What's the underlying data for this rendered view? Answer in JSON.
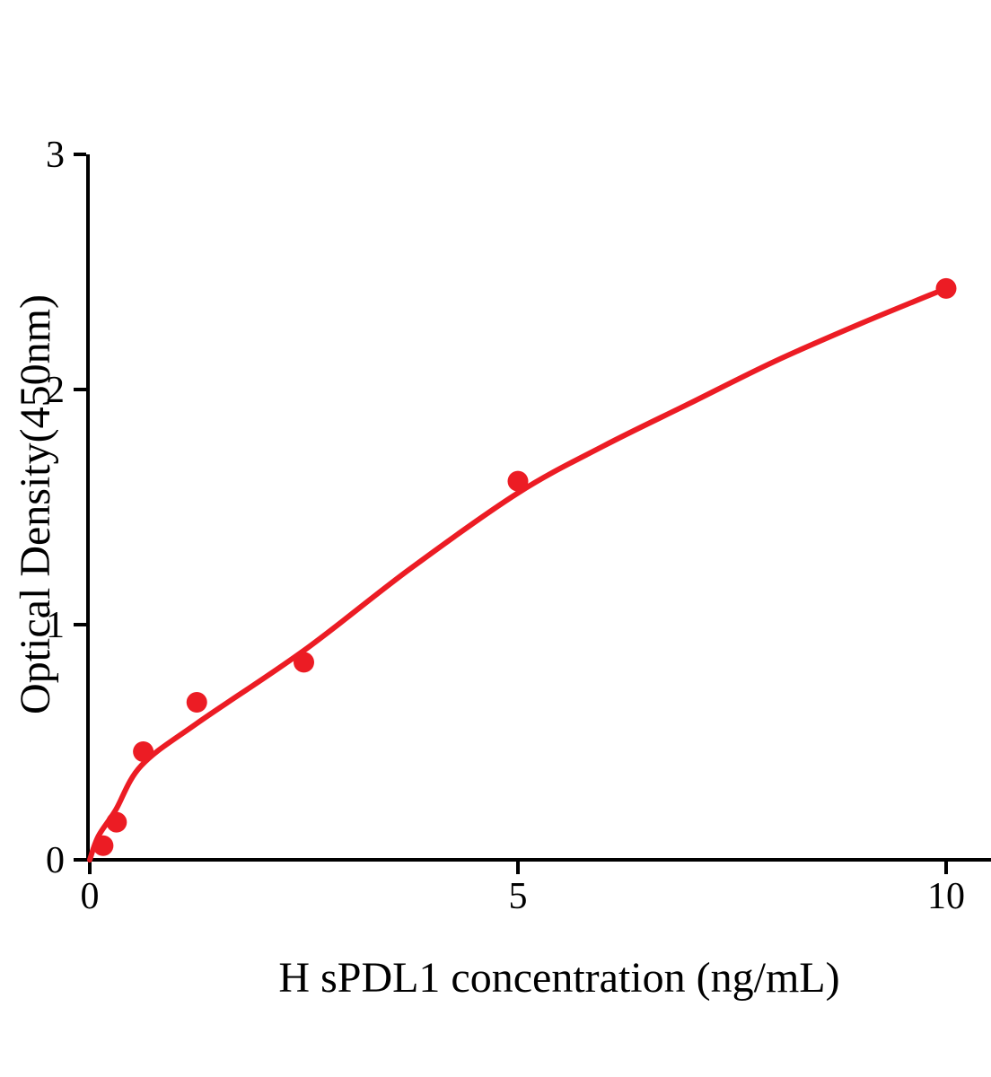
{
  "chart_data": {
    "type": "scatter",
    "title": "",
    "xlabel": "H sPDL1 concentration (ng/mL)",
    "ylabel": "Optical Density(450nm)",
    "xlim": [
      0,
      10.55
    ],
    "ylim": [
      0,
      3
    ],
    "x_ticks": [
      0,
      5,
      10
    ],
    "x_tick_labels": [
      "0",
      "5",
      "10"
    ],
    "y_ticks": [
      0,
      1,
      2,
      3
    ],
    "y_tick_labels": [
      "0",
      "1",
      "2",
      "3"
    ],
    "grid": false,
    "legend": null,
    "colors": {
      "series": "#EC1C24",
      "axis": "#000000",
      "background": "#FFFFFF"
    },
    "series": [
      {
        "name": "standard-points",
        "type": "scatter",
        "color": "#EC1C24",
        "x": [
          0.156,
          0.3125,
          0.625,
          1.25,
          2.5,
          5,
          10
        ],
        "y": [
          0.06,
          0.16,
          0.46,
          0.67,
          0.84,
          1.61,
          2.43
        ]
      },
      {
        "name": "fitted-curve",
        "type": "line",
        "color": "#EC1C24",
        "x": [
          0,
          0.1,
          0.3,
          0.6,
          1.25,
          2.5,
          3.75,
          5,
          6,
          7,
          8,
          9,
          10
        ],
        "y": [
          0,
          0.1,
          0.21,
          0.4,
          0.58,
          0.89,
          1.24,
          1.56,
          1.76,
          1.94,
          2.12,
          2.28,
          2.43
        ]
      }
    ]
  }
}
